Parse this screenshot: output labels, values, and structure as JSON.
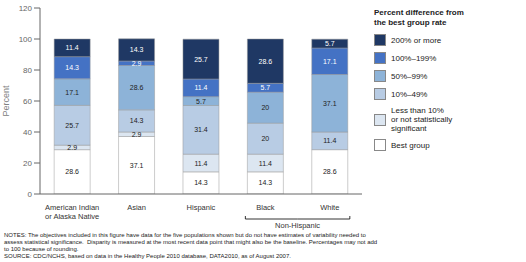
{
  "chart_data": {
    "type": "bar",
    "stacked": true,
    "categories": [
      "American Indian\nor Alaska Native",
      "Asian",
      "Hispanic",
      "Black",
      "White"
    ],
    "series": [
      {
        "name": "Best group",
        "color": "#ffffff",
        "values": [
          28.6,
          37.1,
          14.3,
          14.3,
          28.6
        ]
      },
      {
        "name": "Less than 10%\nor not statistically\nsignificant",
        "color": "#dce6f1",
        "values": [
          2.9,
          2.9,
          11.4,
          11.4,
          0.0
        ]
      },
      {
        "name": "10%–49%",
        "color": "#b8cce4",
        "values": [
          25.7,
          14.3,
          31.4,
          20.0,
          11.4
        ]
      },
      {
        "name": "50%–99%",
        "color": "#8db3d8",
        "values": [
          17.1,
          28.6,
          5.7,
          20.0,
          37.1
        ]
      },
      {
        "name": "100%–199%",
        "color": "#4472c4",
        "values": [
          14.3,
          2.9,
          11.4,
          5.7,
          17.1
        ]
      },
      {
        "name": "200% or more",
        "color": "#1f3864",
        "values": [
          11.4,
          14.3,
          25.7,
          28.6,
          5.7
        ]
      }
    ],
    "ylabel": "Percent",
    "ylim": [
      0,
      120
    ],
    "yticks": [
      0,
      20,
      40,
      60,
      80,
      100,
      120
    ],
    "grid": false,
    "legend": "right",
    "legend_title": "Percent difference from\nthe best group rate",
    "data_labels": true,
    "annotations": [
      {
        "text": "Non-Hispanic",
        "categories": [
          "Black",
          "White"
        ]
      }
    ],
    "notes": [
      "NOTES: The objectives included in this figure have data for the five populations shown but do not have estimates of variability needed to",
      "assess statistical significance.  Disparity is measured at the most recent data point that might also be the baseline. Percentages may not add",
      "to 100 because of rounding.",
      "SOURCE: CDC/NCHS, based on data in the Healthy People 2010 database, DATA2010, as of August 2007."
    ]
  }
}
